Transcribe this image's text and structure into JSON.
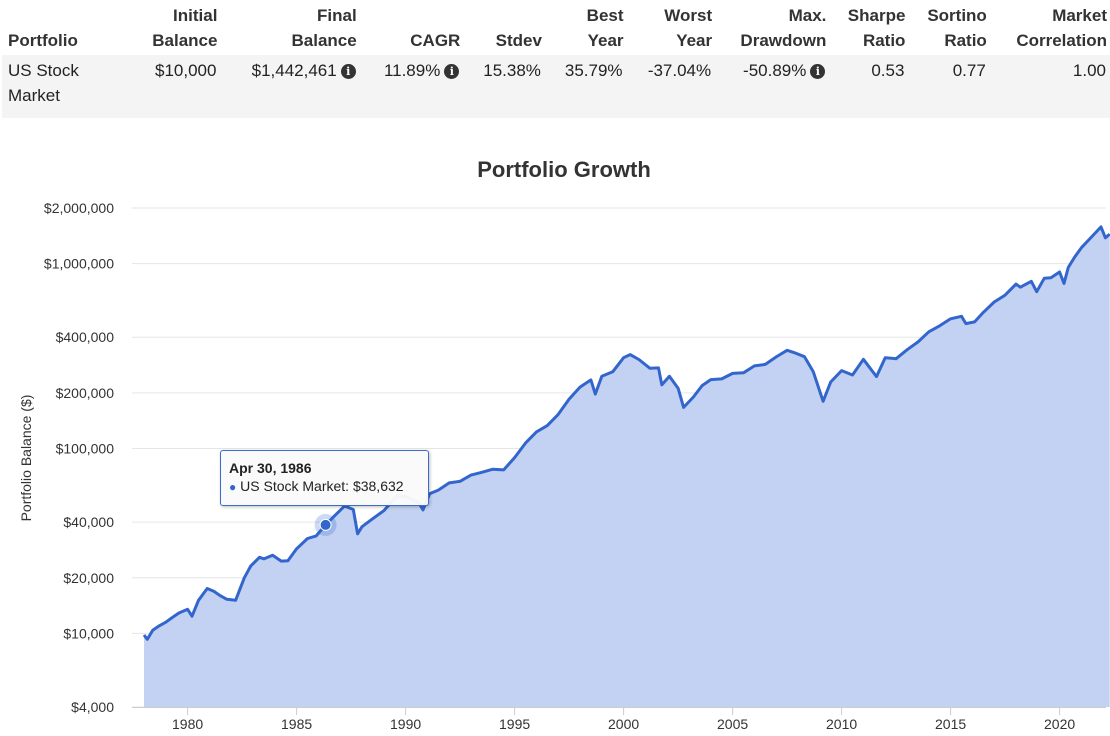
{
  "table": {
    "headers": [
      "Portfolio",
      "Initial Balance",
      "Final Balance",
      "CAGR",
      "Stdev",
      "Best Year",
      "Worst Year",
      "Max. Drawdown",
      "Sharpe Ratio",
      "Sortino Ratio",
      "Market Correlation"
    ],
    "header_lines": [
      [
        "",
        "Portfolio"
      ],
      [
        "Initial",
        "Balance"
      ],
      [
        "Final",
        "Balance"
      ],
      [
        "",
        "CAGR"
      ],
      [
        "",
        "Stdev"
      ],
      [
        "Best",
        "Year"
      ],
      [
        "Worst",
        "Year"
      ],
      [
        "Max.",
        "Drawdown"
      ],
      [
        "Sharpe",
        "Ratio"
      ],
      [
        "Sortino",
        "Ratio"
      ],
      [
        "Market",
        "Correlation"
      ]
    ],
    "row": {
      "portfolio": "US Stock Market",
      "initial_balance": "$10,000",
      "final_balance": "$1,442,461",
      "cagr": "11.89%",
      "stdev": "15.38%",
      "best_year": "35.79%",
      "worst_year": "-37.04%",
      "max_drawdown": "-50.89%",
      "sharpe_ratio": "0.53",
      "sortino_ratio": "0.77",
      "market_correlation": "1.00"
    },
    "info_icon": "info-circle-icon"
  },
  "tooltip": {
    "date": "Apr 30, 1986",
    "series": "US Stock Market",
    "value": "$38,632",
    "x": 1986.33,
    "y": 38632
  },
  "chart_data": {
    "type": "area",
    "title": "Portfolio Growth",
    "xlabel": "",
    "ylabel": "Portfolio Balance ($)",
    "y_scale": "log",
    "ylim": [
      4000,
      2000000
    ],
    "xlim": [
      1978.0,
      2022.3
    ],
    "y_ticks": [
      4000,
      10000,
      20000,
      40000,
      100000,
      200000,
      400000,
      1000000,
      2000000
    ],
    "y_tick_labels": [
      "$4,000",
      "$10,000",
      "$20,000",
      "$40,000",
      "$100,000",
      "$200,000",
      "$400,000",
      "$1,000,000",
      "$2,000,000"
    ],
    "x_ticks": [
      1980,
      1985,
      1990,
      1995,
      2000,
      2005,
      2010,
      2015,
      2020
    ],
    "x_tick_labels": [
      "1980",
      "1985",
      "1990",
      "1995",
      "2000",
      "2005",
      "2010",
      "2015",
      "2020"
    ],
    "grid": true,
    "line_color": "#3366cc",
    "fill_color": "#c3d2f2",
    "series": [
      {
        "name": "US Stock Market",
        "x": [
          1978.0,
          1978.15,
          1978.4,
          1978.7,
          1979.0,
          1979.3,
          1979.6,
          1980.0,
          1980.2,
          1980.5,
          1980.9,
          1981.2,
          1981.5,
          1981.8,
          1982.2,
          1982.6,
          1982.9,
          1983.3,
          1983.5,
          1983.9,
          1984.3,
          1984.6,
          1985.0,
          1985.5,
          1985.9,
          1986.33,
          1986.7,
          1987.2,
          1987.6,
          1987.8,
          1988.0,
          1988.5,
          1989.0,
          1989.6,
          1990.0,
          1990.6,
          1990.8,
          1991.1,
          1991.5,
          1992.0,
          1992.5,
          1993.0,
          1993.5,
          1994.0,
          1994.5,
          1995.0,
          1995.5,
          1996.0,
          1996.5,
          1997.0,
          1997.5,
          1998.0,
          1998.5,
          1998.7,
          1999.0,
          1999.5,
          2000.0,
          2000.3,
          2000.7,
          2001.2,
          2001.6,
          2001.75,
          2002.1,
          2002.5,
          2002.75,
          2003.2,
          2003.6,
          2004.0,
          2004.5,
          2005.0,
          2005.5,
          2006.0,
          2006.5,
          2007.0,
          2007.5,
          2007.8,
          2008.3,
          2008.7,
          2009.15,
          2009.5,
          2010.0,
          2010.5,
          2011.0,
          2011.6,
          2012.0,
          2012.5,
          2013.0,
          2013.5,
          2014.0,
          2014.5,
          2015.0,
          2015.5,
          2015.7,
          2016.1,
          2016.5,
          2017.0,
          2017.5,
          2018.0,
          2018.2,
          2018.7,
          2018.95,
          2019.3,
          2019.6,
          2020.0,
          2020.2,
          2020.4,
          2020.7,
          2021.0,
          2021.5,
          2021.9,
          2022.1,
          2022.3
        ],
        "values": [
          9800,
          9300,
          10400,
          11000,
          11500,
          12200,
          12900,
          13500,
          12400,
          15100,
          17500,
          16900,
          16000,
          15300,
          15100,
          20000,
          23200,
          25800,
          25300,
          26500,
          24600,
          24700,
          28700,
          32600,
          33700,
          38632,
          42800,
          48900,
          46800,
          34600,
          37800,
          41800,
          46100,
          55400,
          55000,
          51100,
          46600,
          57000,
          59600,
          65200,
          66500,
          71800,
          74400,
          77300,
          76600,
          89300,
          107000,
          123000,
          133000,
          153000,
          185000,
          215000,
          235000,
          197000,
          246000,
          260000,
          310000,
          322000,
          303000,
          272000,
          273000,
          221000,
          246000,
          212000,
          167000,
          190000,
          219000,
          236000,
          238000,
          255000,
          257000,
          280000,
          285000,
          313000,
          340000,
          331000,
          314000,
          260000,
          180000,
          229000,
          264000,
          250000,
          304000,
          245000,
          310000,
          306000,
          342000,
          377000,
          428000,
          461000,
          503000,
          519000,
          474000,
          484000,
          545000,
          620000,
          676000,
          775000,
          746000,
          803000,
          705000,
          834000,
          839000,
          901000,
          781000,
          955000,
          1090000,
          1220000,
          1410000,
          1580000,
          1380000,
          1442461
        ]
      }
    ]
  }
}
